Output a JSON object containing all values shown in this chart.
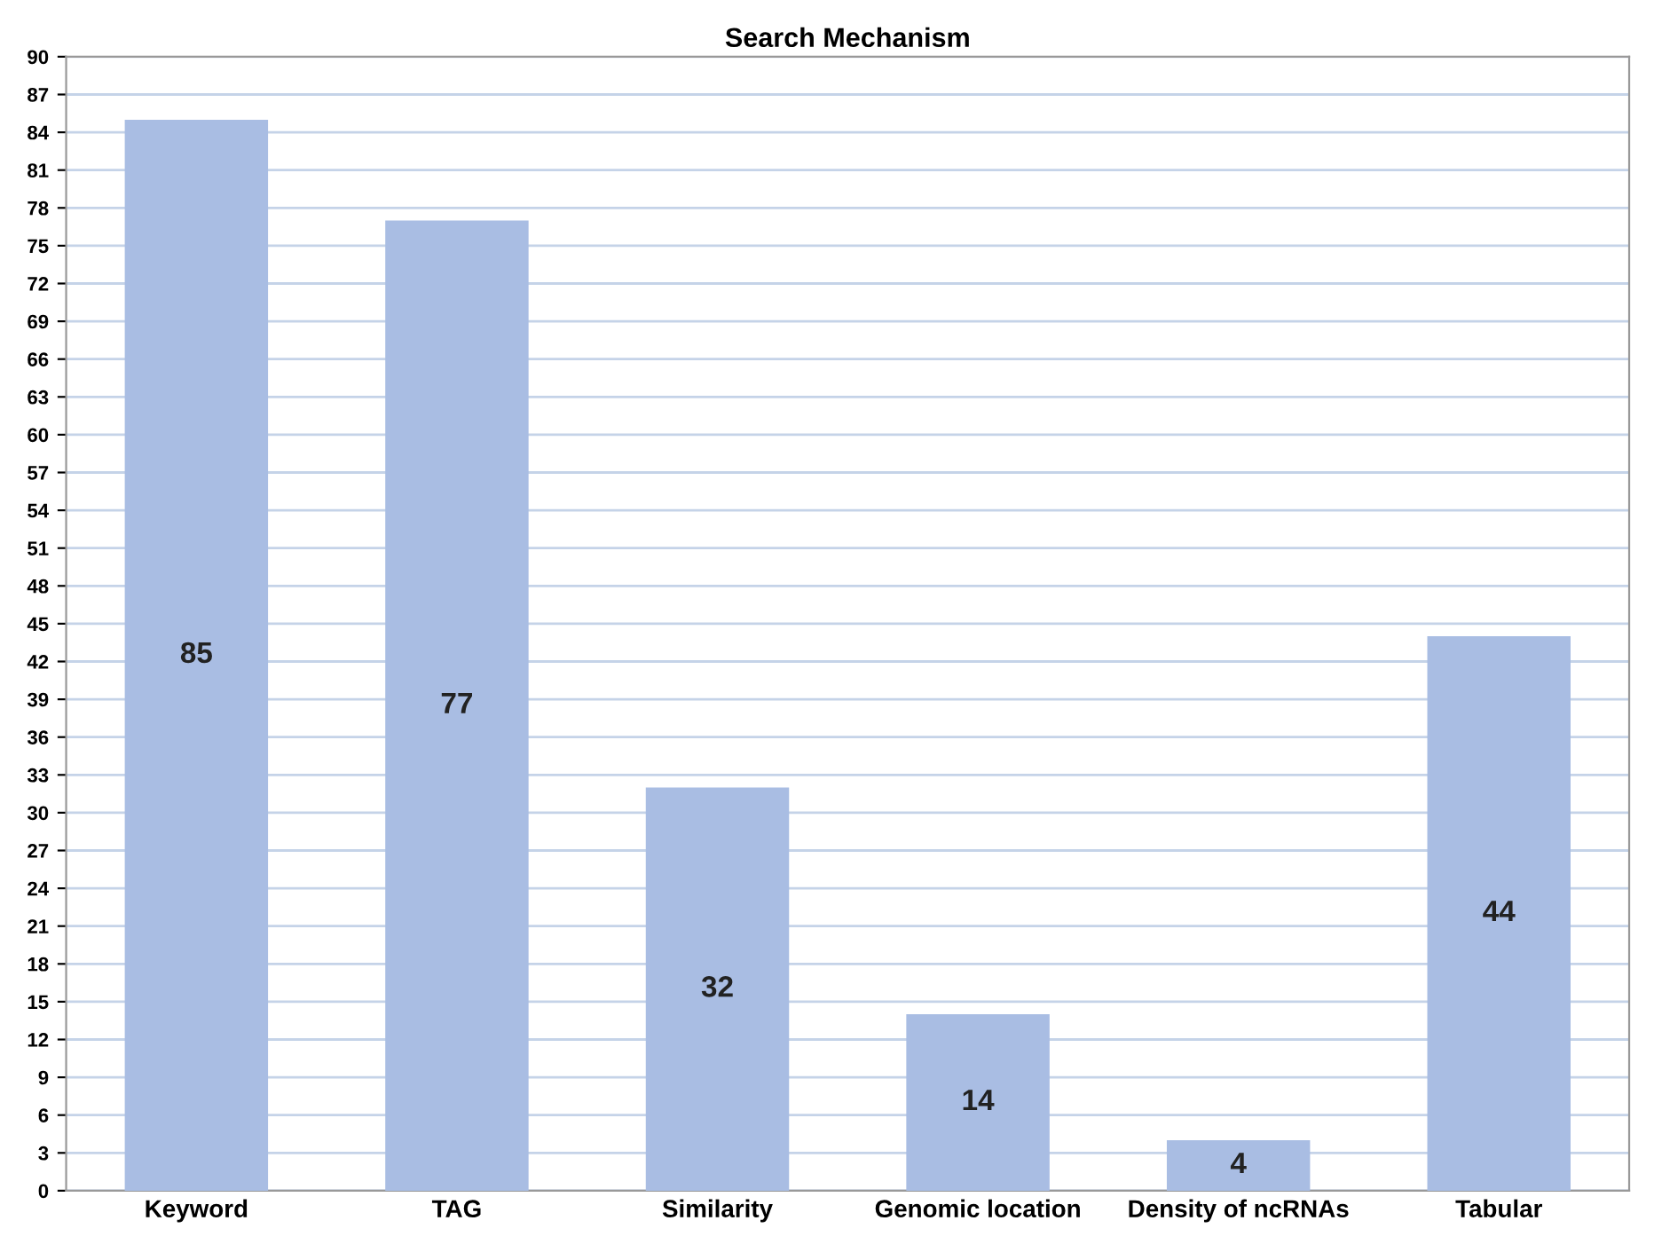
{
  "chart_data": {
    "type": "bar",
    "title": "Search Mechanism",
    "categories": [
      "Keyword",
      "TAG",
      "Similarity",
      "Genomic location",
      "Density of ncRNAs",
      "Tabular"
    ],
    "values": [
      85,
      77,
      32,
      14,
      4,
      44
    ],
    "color": "#a9bde3",
    "ylim": [
      0,
      90
    ],
    "yticks": [
      0,
      3,
      6,
      9,
      12,
      15,
      18,
      21,
      24,
      27,
      30,
      33,
      36,
      39,
      42,
      45,
      48,
      51,
      54,
      57,
      60,
      63,
      66,
      69,
      72,
      75,
      78,
      81,
      84,
      87,
      90
    ],
    "grid": "y",
    "data_labels": true
  }
}
